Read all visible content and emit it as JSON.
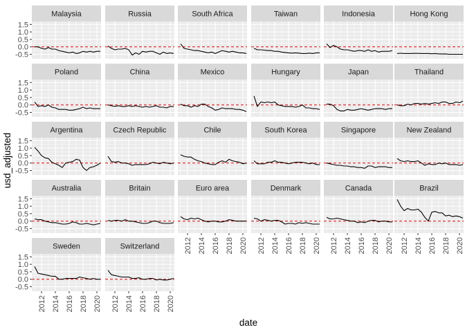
{
  "chart_data": {
    "type": "line",
    "facet_layout": "wrap, 6 columns",
    "xlabel": "date",
    "ylabel": "usd_adjusted",
    "x_ticks": [
      "2012",
      "2014",
      "2016",
      "2018",
      "2020"
    ],
    "y_ticks": [
      "1.5",
      "1.0",
      "0.5",
      "0.0",
      "-0.5"
    ],
    "xlim": [
      2010.6,
      2020.6
    ],
    "ylim": [
      -0.8,
      1.7
    ],
    "reference_line": {
      "y": 0,
      "color": "#e41a1c",
      "style": "dashed"
    },
    "panel_background": "#ebebeb",
    "strip_background": "#d9d9d9",
    "line_color": "#000000",
    "grid": true,
    "legend": "none",
    "x": [
      2011.0,
      2011.5,
      2012.0,
      2012.5,
      2013.0,
      2013.5,
      2014.0,
      2014.5,
      2015.0,
      2015.5,
      2016.0,
      2016.5,
      2017.0,
      2017.5,
      2018.0,
      2018.5,
      2019.0,
      2019.5,
      2020.0,
      2020.5
    ],
    "series": [
      {
        "name": "Malaysia",
        "values": [
          0.0,
          0.0,
          -0.1,
          -0.15,
          -0.05,
          -0.15,
          -0.15,
          -0.25,
          -0.3,
          -0.35,
          -0.4,
          -0.35,
          -0.45,
          -0.4,
          -0.3,
          -0.35,
          -0.3,
          -0.35,
          -0.3,
          -0.3
        ]
      },
      {
        "name": "Russia",
        "values": [
          0.05,
          -0.1,
          -0.2,
          -0.15,
          -0.15,
          -0.1,
          -0.2,
          -0.55,
          -0.4,
          -0.5,
          -0.3,
          -0.35,
          -0.3,
          -0.3,
          -0.4,
          -0.5,
          -0.35,
          -0.45,
          -0.4,
          -0.45
        ]
      },
      {
        "name": "South Africa",
        "values": [
          0.2,
          -0.1,
          -0.15,
          -0.2,
          -0.25,
          -0.25,
          -0.3,
          -0.35,
          -0.4,
          -0.35,
          -0.45,
          -0.35,
          -0.25,
          -0.3,
          -0.35,
          -0.3,
          -0.35,
          -0.4,
          -0.4,
          -0.45
        ]
      },
      {
        "name": "Taiwan",
        "values": [
          -0.1,
          -0.2,
          -0.2,
          -0.22,
          -0.25,
          -0.25,
          -0.3,
          -0.3,
          -0.35,
          -0.38,
          -0.4,
          -0.42,
          -0.4,
          -0.42,
          -0.45,
          -0.45,
          -0.42,
          -0.45,
          -0.4,
          -0.4
        ]
      },
      {
        "name": "Indonesia",
        "values": [
          0.2,
          -0.05,
          0.1,
          0.0,
          -0.15,
          -0.2,
          -0.2,
          -0.25,
          -0.3,
          -0.25,
          -0.25,
          -0.3,
          -0.2,
          -0.3,
          -0.25,
          -0.35,
          -0.3,
          -0.3,
          -0.3,
          -0.25
        ]
      },
      {
        "name": "Hong Kong",
        "values": [
          -0.45,
          -0.43,
          -0.45,
          -0.45,
          -0.45,
          -0.44,
          -0.44,
          -0.45,
          -0.45,
          -0.45,
          -0.46,
          -0.45,
          -0.47,
          -0.48,
          -0.47,
          -0.5,
          -0.5,
          -0.5,
          -0.5,
          -0.5
        ]
      },
      {
        "name": "Poland",
        "values": [
          0.2,
          -0.1,
          -0.05,
          -0.1,
          0.0,
          -0.15,
          -0.2,
          -0.3,
          -0.3,
          -0.3,
          -0.35,
          -0.35,
          -0.3,
          -0.25,
          -0.15,
          -0.25,
          -0.2,
          -0.25,
          -0.25,
          -0.25
        ]
      },
      {
        "name": "China",
        "values": [
          0.0,
          -0.05,
          -0.1,
          -0.05,
          -0.1,
          -0.1,
          -0.05,
          -0.1,
          -0.05,
          -0.1,
          -0.15,
          -0.1,
          -0.15,
          -0.1,
          -0.05,
          -0.15,
          -0.15,
          -0.2,
          -0.1,
          -0.1
        ]
      },
      {
        "name": "Mexico",
        "values": [
          0.05,
          -0.05,
          -0.05,
          -0.15,
          -0.05,
          -0.1,
          0.05,
          0.05,
          -0.1,
          -0.2,
          -0.35,
          -0.3,
          -0.2,
          -0.25,
          -0.25,
          -0.25,
          -0.3,
          -0.3,
          -0.35,
          -0.45
        ]
      },
      {
        "name": "Hungary",
        "values": [
          0.6,
          -0.1,
          0.2,
          0.15,
          0.2,
          0.15,
          0.2,
          0.0,
          -0.05,
          -0.1,
          -0.1,
          -0.1,
          -0.15,
          -0.1,
          0.0,
          -0.2,
          -0.2,
          -0.25,
          -0.25,
          -0.3
        ]
      },
      {
        "name": "Japan",
        "values": [
          0.05,
          0.05,
          -0.05,
          -0.3,
          -0.4,
          -0.4,
          -0.3,
          -0.35,
          -0.35,
          -0.3,
          -0.25,
          -0.3,
          -0.35,
          -0.3,
          -0.25,
          -0.25,
          -0.25,
          -0.3,
          -0.25,
          -0.25
        ]
      },
      {
        "name": "Thailand",
        "values": [
          0.0,
          -0.05,
          -0.05,
          0.05,
          0.0,
          0.1,
          0.1,
          0.05,
          0.1,
          0.05,
          0.1,
          0.15,
          0.1,
          0.2,
          0.2,
          0.1,
          0.1,
          0.2,
          0.15,
          0.25
        ]
      },
      {
        "name": "Argentina",
        "values": [
          1.05,
          0.8,
          0.5,
          0.35,
          0.3,
          0.05,
          -0.05,
          -0.15,
          -0.3,
          0.0,
          0.05,
          0.1,
          0.25,
          0.2,
          -0.3,
          -0.5,
          -0.3,
          -0.25,
          -0.15,
          0.0
        ]
      },
      {
        "name": "Czech Republic",
        "values": [
          0.45,
          0.1,
          0.05,
          0.1,
          0.0,
          0.0,
          -0.05,
          -0.15,
          -0.1,
          -0.1,
          -0.1,
          -0.1,
          -0.05,
          0.05,
          0.0,
          -0.05,
          0.05,
          0.0,
          -0.05,
          0.0
        ]
      },
      {
        "name": "Chile",
        "values": [
          0.55,
          0.45,
          0.4,
          0.4,
          0.25,
          0.15,
          0.1,
          0.0,
          -0.05,
          -0.1,
          -0.1,
          0.05,
          0.15,
          0.05,
          0.25,
          0.15,
          0.1,
          0.05,
          -0.05,
          0.0
        ]
      },
      {
        "name": "South Korea",
        "values": [
          0.15,
          -0.05,
          -0.05,
          -0.05,
          0.05,
          0.05,
          0.15,
          0.05,
          0.05,
          0.0,
          -0.05,
          0.0,
          0.05,
          0.05,
          0.05,
          0.0,
          -0.05,
          0.0,
          -0.1,
          -0.1
        ]
      },
      {
        "name": "Singapore",
        "values": [
          0.0,
          -0.05,
          -0.1,
          -0.15,
          -0.15,
          -0.2,
          -0.2,
          -0.25,
          -0.25,
          -0.3,
          -0.3,
          -0.35,
          -0.2,
          -0.2,
          -0.3,
          -0.25,
          -0.25,
          -0.25,
          -0.3,
          -0.3
        ]
      },
      {
        "name": "New Zealand",
        "values": [
          0.3,
          0.15,
          0.1,
          0.15,
          0.1,
          0.1,
          0.15,
          0.0,
          -0.15,
          -0.05,
          -0.1,
          -0.1,
          0.0,
          -0.05,
          0.0,
          -0.1,
          -0.1,
          -0.1,
          -0.15,
          -0.1
        ]
      },
      {
        "name": "Australia",
        "values": [
          0.15,
          0.1,
          0.1,
          0.0,
          -0.05,
          -0.1,
          -0.1,
          -0.15,
          -0.2,
          -0.2,
          -0.15,
          -0.05,
          -0.1,
          -0.2,
          -0.2,
          -0.15,
          -0.2,
          -0.25,
          -0.2,
          -0.15
        ]
      },
      {
        "name": "Britain",
        "values": [
          0.05,
          0.0,
          0.05,
          0.05,
          0.0,
          0.1,
          0.0,
          0.0,
          -0.05,
          -0.1,
          -0.15,
          -0.15,
          -0.1,
          0.0,
          0.0,
          -0.1,
          -0.15,
          -0.15,
          -0.15,
          -0.1
        ]
      },
      {
        "name": "Euro area",
        "values": [
          0.3,
          0.15,
          0.1,
          0.2,
          0.15,
          0.2,
          0.1,
          0.0,
          -0.05,
          0.0,
          0.0,
          -0.05,
          -0.05,
          0.0,
          0.1,
          0.05,
          0.0,
          0.0,
          0.0,
          0.0
        ]
      },
      {
        "name": "Denmark",
        "values": [
          0.2,
          0.15,
          0.0,
          0.1,
          0.05,
          0.0,
          0.05,
          0.05,
          -0.05,
          -0.2,
          -0.15,
          -0.15,
          -0.2,
          -0.1,
          -0.15,
          -0.1,
          -0.15,
          -0.2,
          -0.2,
          -0.2
        ]
      },
      {
        "name": "Canada",
        "values": [
          0.25,
          0.15,
          0.15,
          0.2,
          0.15,
          0.1,
          0.05,
          0.0,
          0.0,
          -0.1,
          -0.05,
          -0.1,
          0.0,
          0.05,
          0.05,
          -0.05,
          0.0,
          0.0,
          -0.05,
          -0.05
        ]
      },
      {
        "name": "Brazil",
        "values": [
          1.45,
          1.0,
          0.7,
          0.85,
          0.75,
          0.75,
          0.8,
          0.6,
          0.25,
          0.0,
          0.6,
          0.65,
          0.55,
          0.55,
          0.35,
          0.4,
          0.3,
          0.35,
          0.3,
          0.2
        ]
      },
      {
        "name": "Sweden",
        "values": [
          0.85,
          0.4,
          0.35,
          0.3,
          0.25,
          0.2,
          0.2,
          0.0,
          0.0,
          0.05,
          0.05,
          0.05,
          0.05,
          0.15,
          0.1,
          0.05,
          0.0,
          0.05,
          0.0,
          0.0
        ]
      },
      {
        "name": "Switzerland",
        "values": [
          0.6,
          0.3,
          0.25,
          0.2,
          0.15,
          0.15,
          0.15,
          0.05,
          0.05,
          0.1,
          0.0,
          0.0,
          0.05,
          0.05,
          -0.05,
          0.0,
          -0.05,
          -0.05,
          0.0,
          0.05
        ]
      }
    ]
  }
}
